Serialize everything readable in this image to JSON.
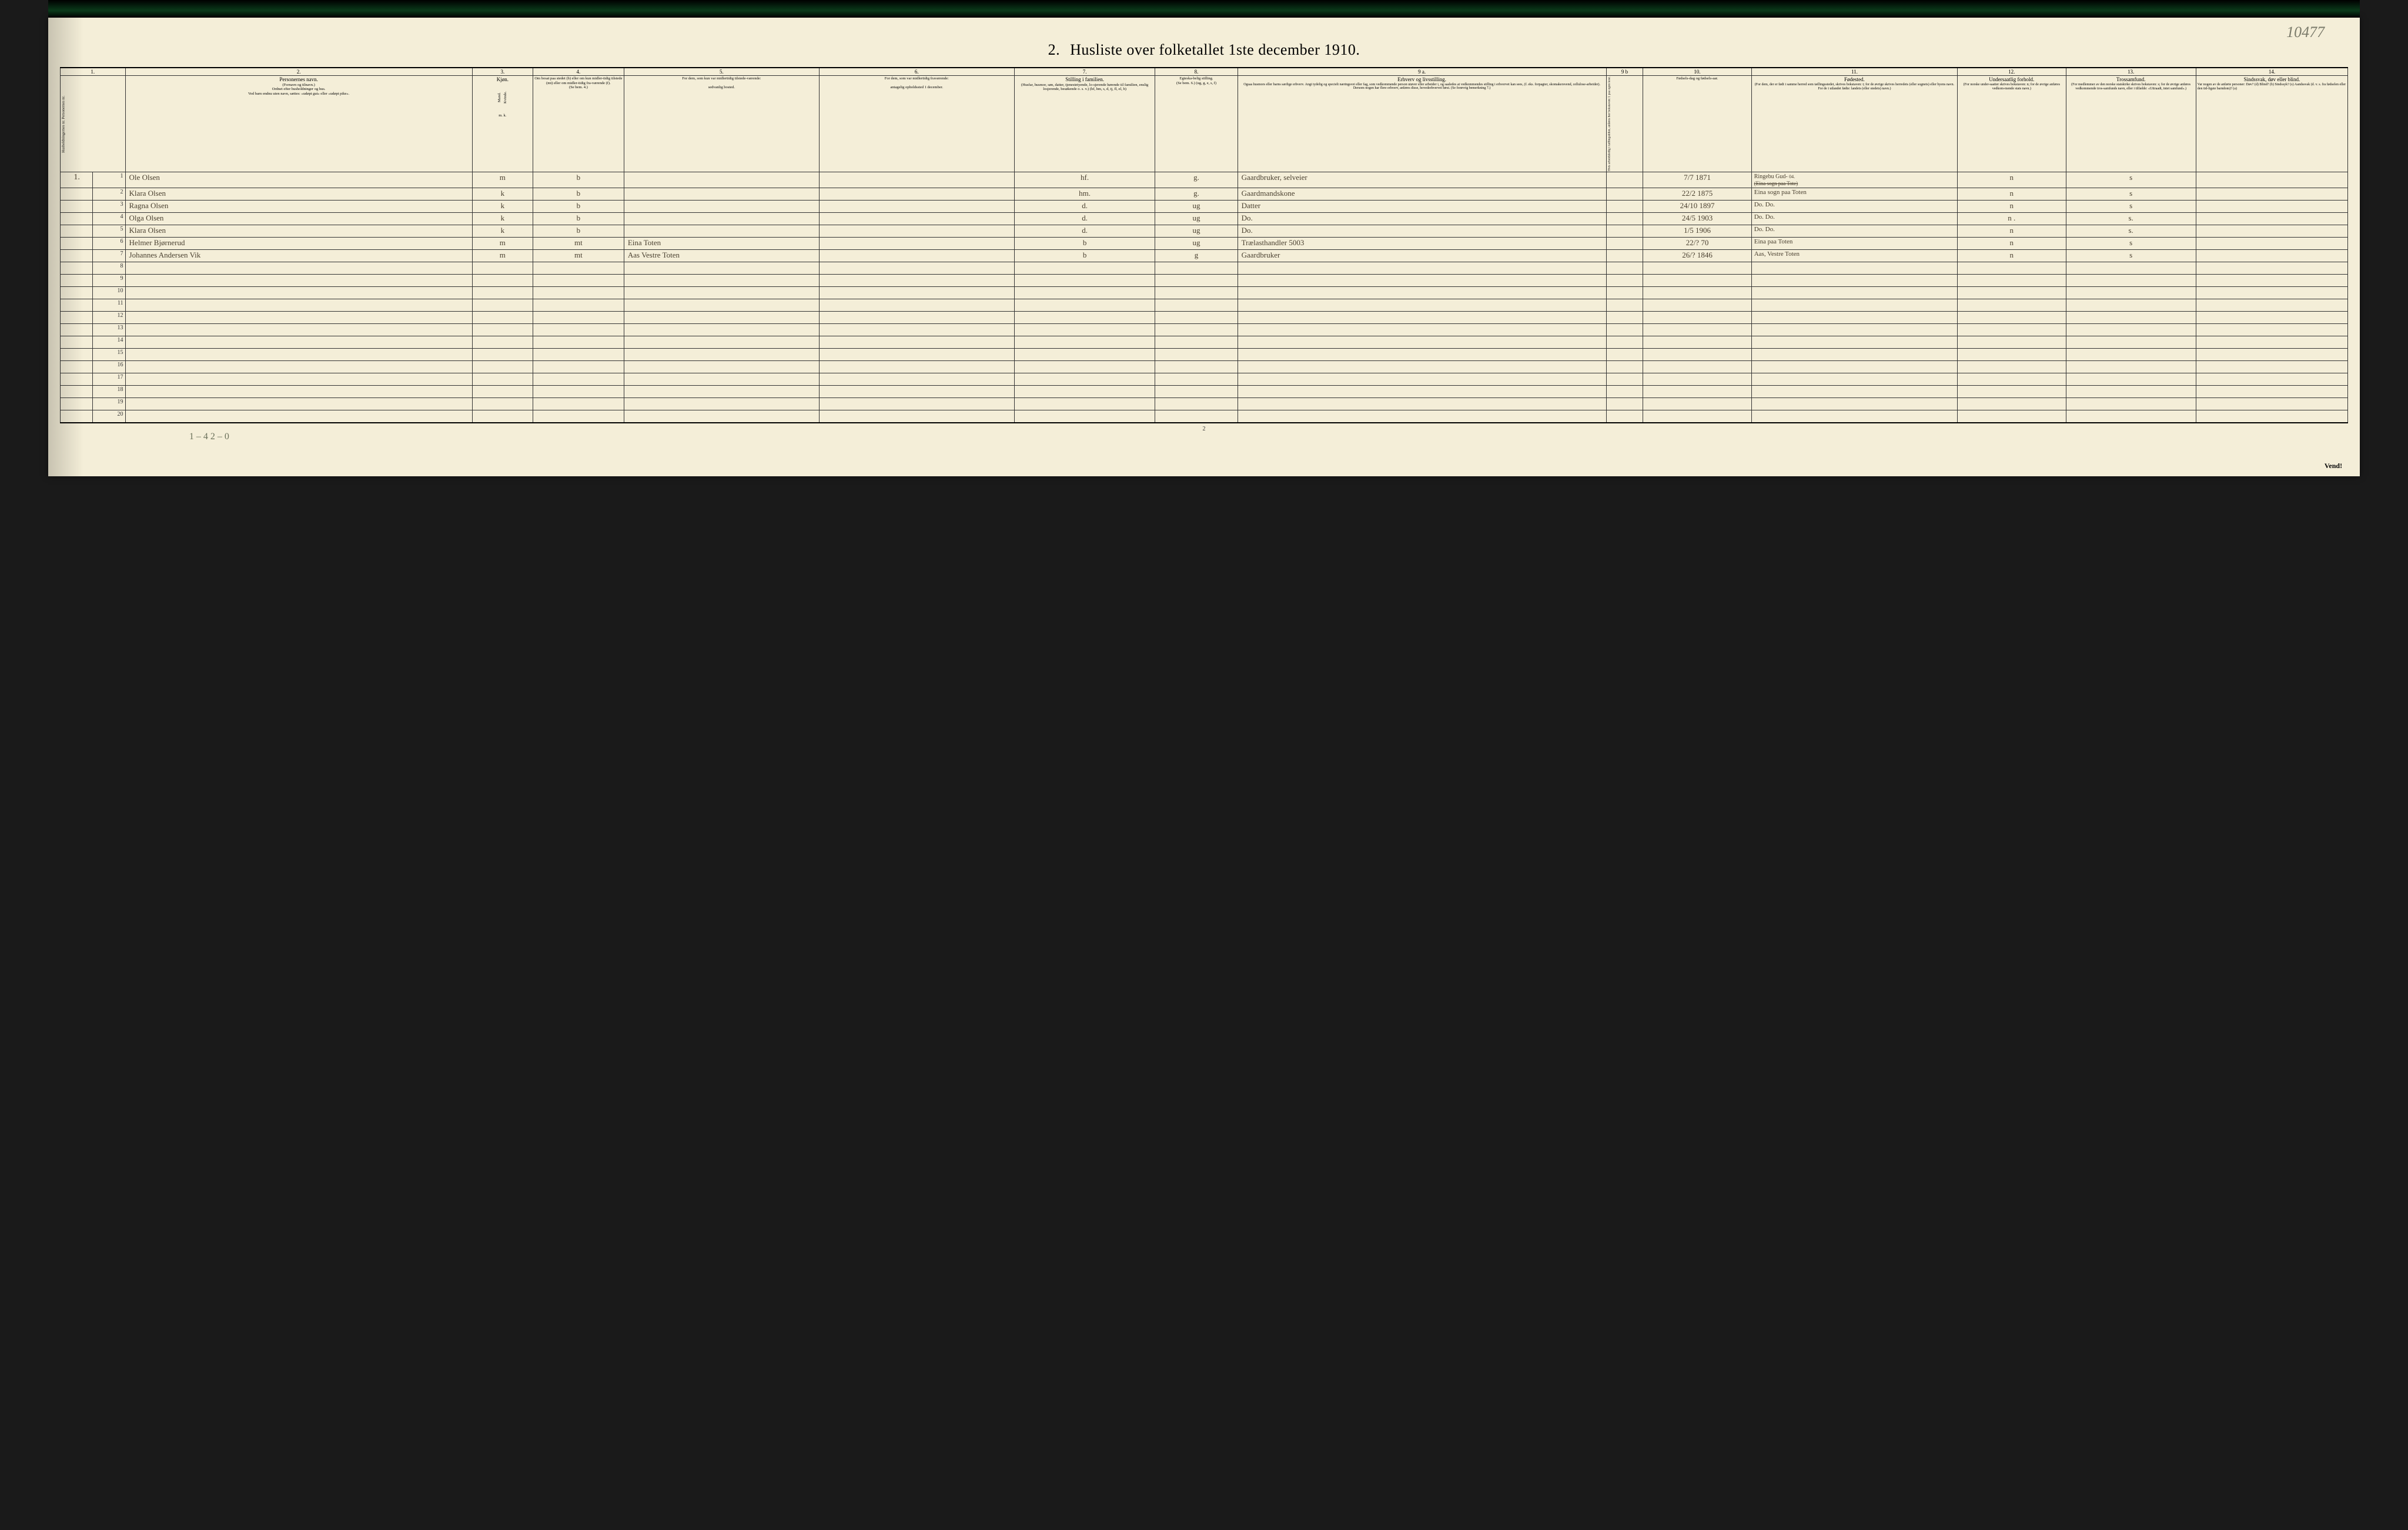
{
  "page_number_handwritten": "10477",
  "title_prefix": "2.",
  "title_text": "Husliste over folketallet 1ste december 1910.",
  "footer_tally": "1 – 4   2 – 0",
  "footer_page_num": "2",
  "vend_text": "Vend!",
  "column_numbers": [
    "1.",
    "2.",
    "3.",
    "4.",
    "5.",
    "6.",
    "7.",
    "8.",
    "9 a.",
    "9 b",
    "10.",
    "11.",
    "12.",
    "13.",
    "14."
  ],
  "headers": {
    "c1": "Husholdningernes nr.\nPersonernes nr.",
    "c2_title": "Personernes navn.",
    "c2_note1": "(Fornavn og tilnavn.)",
    "c2_note2": "Ordnet efter husholdninger og hus.",
    "c2_note3": "Ved barn endnu uten navn, sættes: «udøpt gut» eller «udøpt pike».",
    "c3_title": "Kjøn.",
    "c3_m": "Mand.",
    "c3_k": "Kvinde.",
    "c3_mk": "m.   k.",
    "c4_title": "Om bosat paa stedet (b) eller om kun midler-tidig tilstede (mt) eller om midler-tidig fra-værende (f).",
    "c4_note": "(Se bem. 4.)",
    "c5_title": "For dem, som kun var midlertidig tilstede-værende:",
    "c5_sub": "sedvanlig bosted.",
    "c6_title": "For dem, som var midlertidig fraværende:",
    "c6_sub": "antagelig opholdssted 1 december.",
    "c7_title": "Stilling i familien.",
    "c7_note": "(Husfar, husmor, søn, datter, tjenestetyende, lo-sjerende hørende til familien, enslig losjerende, besøkende o. s. v.)\n(hf, hm, s, d, tj, fl, el, b)",
    "c8_title": "Egteska-belig stilling.",
    "c8_note": "(Se bem. 6.)\n(ug, g, e, s, f)",
    "c9a_title": "Erhverv og livsstilling.",
    "c9a_note": "Ogsaa husmors eller barns særlige erhverv. Angi tydelig og specielt næringsvei eller fag, som vedkommende person utøver eller arbeider i, og saaledes at vedkommendes stilling i erhvervet kan sees, (f. eks. forpagter, skomakersvend, cellulose-arbeider). Dersom nogen har flere erhverv, anføres disse, hovederhvervet først.\n(Se forøvrig bemerkning 7.)",
    "c9b_title": "Hvis arbeidsledig i tællingstiden, anføres her bokstaven: l.\npaa egen kost.",
    "c10_title": "Fødsels-dag og fødsels-aar.",
    "c11_title": "Fødested.",
    "c11_note": "(For dem, der er født i samme herred som tællingsstedet, skrives bokstaven: t; for de øvrige skrives herredets (eller sognets) eller byens navn. For de i utlandet fødte: landets (eller stedets) navn.)",
    "c12_title": "Undersaatlig forhold.",
    "c12_note": "(For norske under-saatter skrives bokstaven: n; for de øvrige anføres vedkom-mende stats navn.)",
    "c13_title": "Trossamfund.",
    "c13_note": "(For medlemmer av den norske statskirke skrives bokstaven: s; for de øvrige anføres vedkommende tros-samfunds navn, eller i tilfælde: «Uttraadt, intet samfund».)",
    "c14_title": "Sindssvak, døv eller blind.",
    "c14_note": "Var nogen av de anførte personer:\nDøv?  (d)\nBlind? (b)\nSindssyk? (s)\nAandssvak (d. v. s. fra fødselen eller den tid-ligste barndom)? (a)"
  },
  "rows": [
    {
      "hh": "1.",
      "n": "1",
      "name": "Ole Olsen",
      "sex": "m",
      "res": "b",
      "usual": "",
      "away": "",
      "rel": "hf.",
      "mar": "g.",
      "occ": "Gaardbruker, selveier",
      "led": "",
      "dob": "7/7 1871",
      "bplace": "Ringebu Gud- ",
      "bplace2": "(Eina sogn paa Tote)",
      "nat": "n",
      "rel13": "s",
      "c14": ""
    },
    {
      "hh": "",
      "n": "2",
      "name": "Klara Olsen",
      "sex": "k",
      "res": "b",
      "usual": "",
      "away": "",
      "rel": "hm.",
      "mar": "g.",
      "occ": "Gaardmandskone",
      "led": "",
      "dob": "22/2 1875",
      "bplace": "Eina sogn paa Toten",
      "nat": "n",
      "rel13": "s",
      "c14": ""
    },
    {
      "hh": "",
      "n": "3",
      "name": "Ragna Olsen",
      "sex": "k",
      "res": "b",
      "usual": "",
      "away": "",
      "rel": "d.",
      "mar": "ug",
      "occ": "Datter",
      "led": "",
      "dob": "24/10 1897",
      "bplace": "Do.   Do.",
      "nat": "n",
      "rel13": "s",
      "c14": ""
    },
    {
      "hh": "",
      "n": "4",
      "name": "Olga Olsen",
      "sex": "k",
      "res": "b",
      "usual": "",
      "away": "",
      "rel": "d.",
      "mar": "ug",
      "occ": "Do.",
      "led": "",
      "dob": "24/5 1903",
      "bplace": "Do.   Do.",
      "nat": "n .",
      "rel13": "s.",
      "c14": ""
    },
    {
      "hh": "",
      "n": "5",
      "name": "Klara Olsen",
      "sex": "k",
      "res": "b",
      "usual": "",
      "away": "",
      "rel": "d.",
      "mar": "ug",
      "occ": "Do.",
      "led": "",
      "dob": "1/5 1906",
      "bplace": "Do.   Do.",
      "nat": "n",
      "rel13": "s.",
      "c14": ""
    },
    {
      "hh": "",
      "n": "6",
      "name": "Helmer Bjørnerud",
      "sex": "m",
      "res": "mt",
      "usual": "Eina Toten",
      "away": "",
      "rel": "b",
      "mar": "ug",
      "occ": "Trælasthandler 5003",
      "led": "",
      "dob": "22/? 70",
      "bplace": "Eina paa Toten",
      "nat": "n",
      "rel13": "s",
      "c14": ""
    },
    {
      "hh": "",
      "n": "7",
      "name": "Johannes Andersen Vik",
      "sex": "m",
      "res": "mt",
      "usual": "Aas Vestre Toten",
      "away": "",
      "rel": "b",
      "mar": "g",
      "occ": "Gaardbruker",
      "led": "",
      "dob": "26/? 1846",
      "bplace": "Aas, Vestre Toten",
      "nat": "n",
      "rel13": "s",
      "c14": ""
    },
    {
      "hh": "",
      "n": "8",
      "name": "",
      "sex": "",
      "res": "",
      "usual": "",
      "away": "",
      "rel": "",
      "mar": "",
      "occ": "",
      "led": "",
      "dob": "",
      "bplace": "",
      "nat": "",
      "rel13": "",
      "c14": ""
    },
    {
      "hh": "",
      "n": "9",
      "name": "",
      "sex": "",
      "res": "",
      "usual": "",
      "away": "",
      "rel": "",
      "mar": "",
      "occ": "",
      "led": "",
      "dob": "",
      "bplace": "",
      "nat": "",
      "rel13": "",
      "c14": ""
    },
    {
      "hh": "",
      "n": "10",
      "name": "",
      "sex": "",
      "res": "",
      "usual": "",
      "away": "",
      "rel": "",
      "mar": "",
      "occ": "",
      "led": "",
      "dob": "",
      "bplace": "",
      "nat": "",
      "rel13": "",
      "c14": ""
    },
    {
      "hh": "",
      "n": "11",
      "name": "",
      "sex": "",
      "res": "",
      "usual": "",
      "away": "",
      "rel": "",
      "mar": "",
      "occ": "",
      "led": "",
      "dob": "",
      "bplace": "",
      "nat": "",
      "rel13": "",
      "c14": ""
    },
    {
      "hh": "",
      "n": "12",
      "name": "",
      "sex": "",
      "res": "",
      "usual": "",
      "away": "",
      "rel": "",
      "mar": "",
      "occ": "",
      "led": "",
      "dob": "",
      "bplace": "",
      "nat": "",
      "rel13": "",
      "c14": ""
    },
    {
      "hh": "",
      "n": "13",
      "name": "",
      "sex": "",
      "res": "",
      "usual": "",
      "away": "",
      "rel": "",
      "mar": "",
      "occ": "",
      "led": "",
      "dob": "",
      "bplace": "",
      "nat": "",
      "rel13": "",
      "c14": ""
    },
    {
      "hh": "",
      "n": "14",
      "name": "",
      "sex": "",
      "res": "",
      "usual": "",
      "away": "",
      "rel": "",
      "mar": "",
      "occ": "",
      "led": "",
      "dob": "",
      "bplace": "",
      "nat": "",
      "rel13": "",
      "c14": ""
    },
    {
      "hh": "",
      "n": "15",
      "name": "",
      "sex": "",
      "res": "",
      "usual": "",
      "away": "",
      "rel": "",
      "mar": "",
      "occ": "",
      "led": "",
      "dob": "",
      "bplace": "",
      "nat": "",
      "rel13": "",
      "c14": ""
    },
    {
      "hh": "",
      "n": "16",
      "name": "",
      "sex": "",
      "res": "",
      "usual": "",
      "away": "",
      "rel": "",
      "mar": "",
      "occ": "",
      "led": "",
      "dob": "",
      "bplace": "",
      "nat": "",
      "rel13": "",
      "c14": ""
    },
    {
      "hh": "",
      "n": "17",
      "name": "",
      "sex": "",
      "res": "",
      "usual": "",
      "away": "",
      "rel": "",
      "mar": "",
      "occ": "",
      "led": "",
      "dob": "",
      "bplace": "",
      "nat": "",
      "rel13": "",
      "c14": ""
    },
    {
      "hh": "",
      "n": "18",
      "name": "",
      "sex": "",
      "res": "",
      "usual": "",
      "away": "",
      "rel": "",
      "mar": "",
      "occ": "",
      "led": "",
      "dob": "",
      "bplace": "",
      "nat": "",
      "rel13": "",
      "c14": ""
    },
    {
      "hh": "",
      "n": "19",
      "name": "",
      "sex": "",
      "res": "",
      "usual": "",
      "away": "",
      "rel": "",
      "mar": "",
      "occ": "",
      "led": "",
      "dob": "",
      "bplace": "",
      "nat": "",
      "rel13": "",
      "c14": ""
    },
    {
      "hh": "",
      "n": "20",
      "name": "",
      "sex": "",
      "res": "",
      "usual": "",
      "away": "",
      "rel": "",
      "mar": "",
      "occ": "",
      "led": "",
      "dob": "",
      "bplace": "",
      "nat": "",
      "rel13": "",
      "c14": ""
    }
  ],
  "col_widths_pct": [
    1.5,
    1.5,
    16,
    2.8,
    4.2,
    9,
    9,
    6.5,
    3.8,
    17,
    1.7,
    5,
    9.5,
    5,
    6,
    7
  ],
  "colors": {
    "paper": "#f4eed8",
    "ink": "#333333",
    "handwriting": "#4a4030",
    "page_bg": "#1a1a1a"
  }
}
